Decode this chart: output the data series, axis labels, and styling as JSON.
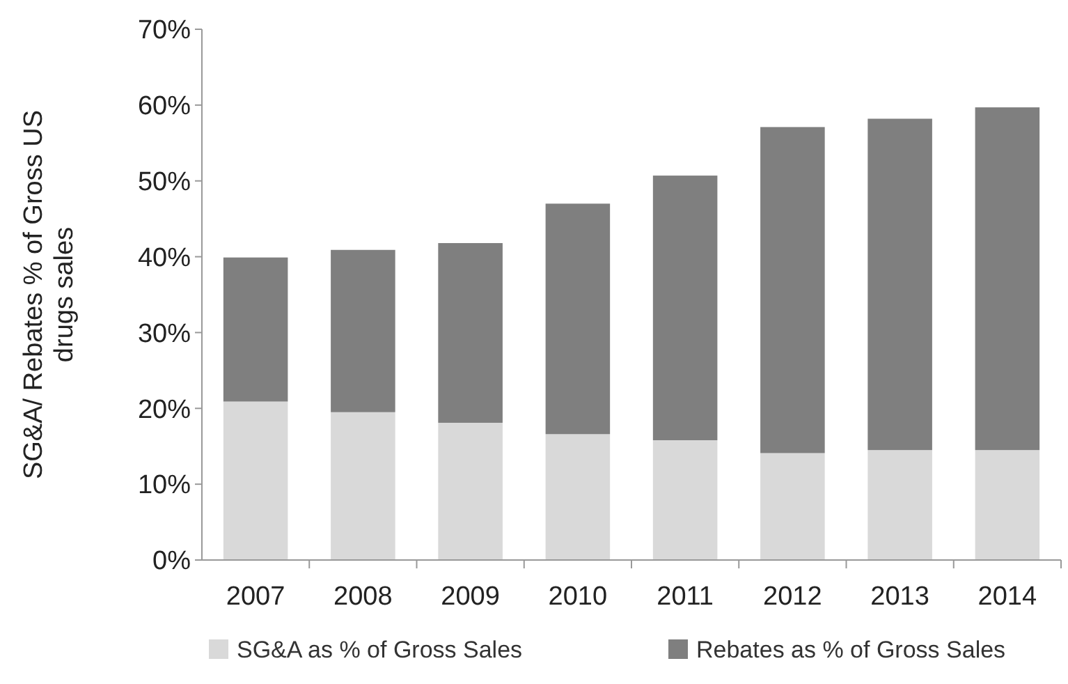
{
  "chart_data": {
    "type": "bar",
    "stacked": true,
    "ylabel": "SG&A/ Rebates  % of Gross US\ndrugs sales",
    "categories": [
      "2007",
      "2008",
      "2009",
      "2010",
      "2011",
      "2012",
      "2013",
      "2014"
    ],
    "series": [
      {
        "name": "SG&A as % of Gross Sales",
        "color": "#d9d9d9",
        "values": [
          20.9,
          19.5,
          18.1,
          16.6,
          15.8,
          14.1,
          14.5,
          14.5
        ]
      },
      {
        "name": "Rebates as % of Gross Sales",
        "color": "#7f7f7f",
        "values": [
          19.0,
          21.4,
          23.7,
          30.4,
          34.9,
          43.0,
          43.7,
          45.2
        ]
      }
    ],
    "ylim": [
      0,
      70
    ],
    "yticks": [
      {
        "value": 0,
        "label": "0%"
      },
      {
        "value": 10,
        "label": "10%"
      },
      {
        "value": 20,
        "label": "20%"
      },
      {
        "value": 30,
        "label": "30%"
      },
      {
        "value": 40,
        "label": "40%"
      },
      {
        "value": 50,
        "label": "50%"
      },
      {
        "value": 60,
        "label": "60%"
      },
      {
        "value": 70,
        "label": "70%"
      }
    ],
    "grid": false,
    "legend": "bottom"
  }
}
